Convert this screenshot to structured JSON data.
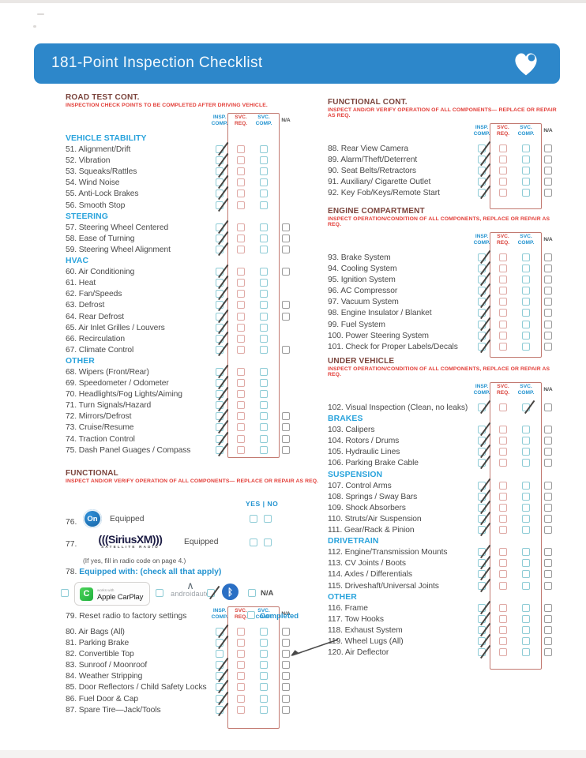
{
  "banner": {
    "title": "181-Point Inspection Checklist"
  },
  "columns": {
    "headers": [
      [
        "INSP.",
        "COMP."
      ],
      [
        "SVC.",
        "REQ."
      ],
      [
        "SVC.",
        "COMP."
      ],
      [
        "N/A"
      ]
    ]
  },
  "sections": {
    "road_test": {
      "title": "ROAD TEST CONT.",
      "subtitle": "INSPECTION CHECK POINTS TO BE COMPLETED AFTER DRIVING VEHICLE.",
      "rows": [
        {
          "t": "g",
          "l": "VEHICLE STABILITY"
        },
        {
          "t": "i",
          "l": "51. Alignment/Drift",
          "b": [
            1,
            0,
            0
          ],
          "na": "none"
        },
        {
          "t": "i",
          "l": "52. Vibration",
          "b": [
            1,
            0,
            0
          ],
          "na": "none"
        },
        {
          "t": "i",
          "l": "53. Squeaks/Rattles",
          "b": [
            1,
            0,
            0
          ],
          "na": "none"
        },
        {
          "t": "i",
          "l": "54. Wind Noise",
          "b": [
            1,
            0,
            0
          ],
          "na": "none"
        },
        {
          "t": "i",
          "l": "55. Anti-Lock Brakes",
          "b": [
            1,
            0,
            0
          ],
          "na": "none"
        },
        {
          "t": "i",
          "l": "56. Smooth Stop",
          "b": [
            1,
            0,
            0
          ],
          "na": "none"
        },
        {
          "t": "g",
          "l": "STEERING"
        },
        {
          "t": "i",
          "l": "57. Steering Wheel Centered",
          "b": [
            1,
            0,
            0
          ],
          "na": "box"
        },
        {
          "t": "i",
          "l": "58. Ease of Turning",
          "b": [
            1,
            0,
            0
          ],
          "na": "box"
        },
        {
          "t": "i",
          "l": "59. Steering Wheel Alignment",
          "b": [
            1,
            0,
            0
          ],
          "na": "box"
        },
        {
          "t": "g",
          "l": "HVAC"
        },
        {
          "t": "i",
          "l": "60. Air Conditioning",
          "b": [
            1,
            0,
            0
          ],
          "na": "box"
        },
        {
          "t": "i",
          "l": "61. Heat",
          "b": [
            1,
            0,
            0
          ],
          "na": "none"
        },
        {
          "t": "i",
          "l": "62. Fan/Speeds",
          "b": [
            1,
            0,
            0
          ],
          "na": "none"
        },
        {
          "t": "i",
          "l": "63. Defrost",
          "b": [
            1,
            0,
            0
          ],
          "na": "box"
        },
        {
          "t": "i",
          "l": "64. Rear Defrost",
          "b": [
            1,
            0,
            0
          ],
          "na": "box"
        },
        {
          "t": "i",
          "l": "65. Air Inlet Grilles / Louvers",
          "b": [
            1,
            0,
            0
          ],
          "na": "none"
        },
        {
          "t": "i",
          "l": "66. Recirculation",
          "b": [
            1,
            0,
            0
          ],
          "na": "none"
        },
        {
          "t": "i",
          "l": "67. Climate Control",
          "b": [
            1,
            0,
            0
          ],
          "na": "box"
        },
        {
          "t": "g",
          "l": "OTHER"
        },
        {
          "t": "i",
          "l": "68. Wipers (Front/Rear)",
          "b": [
            1,
            0,
            0
          ],
          "na": "none"
        },
        {
          "t": "i",
          "l": "69. Speedometer / Odometer",
          "b": [
            1,
            0,
            0
          ],
          "na": "none"
        },
        {
          "t": "i",
          "l": "70. Headlights/Fog Lights/Aiming",
          "b": [
            1,
            0,
            0
          ],
          "na": "none"
        },
        {
          "t": "i",
          "l": "71. Turn Signals/Hazard",
          "b": [
            1,
            0,
            0
          ],
          "na": "none"
        },
        {
          "t": "i",
          "l": "72. Mirrors/Defrost",
          "b": [
            1,
            0,
            0
          ],
          "na": "box"
        },
        {
          "t": "i",
          "l": "73. Cruise/Resume",
          "b": [
            1,
            0,
            0
          ],
          "na": "box"
        },
        {
          "t": "i",
          "l": "74. Traction Control",
          "b": [
            1,
            0,
            0
          ],
          "na": "box"
        },
        {
          "t": "i",
          "l": "75. Dash Panel Guages / Compass",
          "b": [
            1,
            0,
            0
          ],
          "na": "box"
        }
      ]
    },
    "bottom_left": {
      "rows": [
        {
          "t": "i",
          "l": "80. Air Bags (All)",
          "b": [
            1,
            0,
            0
          ],
          "na": "box"
        },
        {
          "t": "i",
          "l": "81. Parking Brake",
          "b": [
            1,
            0,
            0
          ],
          "na": "box"
        },
        {
          "t": "i",
          "l": "82. Convertible Top",
          "b": [
            0,
            0,
            0
          ],
          "na": "box"
        },
        {
          "t": "i",
          "l": "83. Sunroof / Moonroof",
          "b": [
            1,
            0,
            0
          ],
          "na": "box"
        },
        {
          "t": "i",
          "l": "84. Weather Stripping",
          "b": [
            1,
            0,
            0
          ],
          "na": "box"
        },
        {
          "t": "i",
          "l": "85. Door Reflectors / Child Safety Locks",
          "b": [
            1,
            0,
            0
          ],
          "na": "box"
        },
        {
          "t": "i",
          "l": "86. Fuel Door & Cap",
          "b": [
            1,
            0,
            0
          ],
          "na": "box"
        },
        {
          "t": "i",
          "l": "87. Spare Tire—Jack/Tools",
          "b": [
            1,
            0,
            0
          ],
          "na": "box"
        }
      ]
    },
    "functional_cont": {
      "title": "FUNCTIONAL CONT.",
      "subtitle": "INSPECT AND/OR VERIFY OPERATION OF ALL COMPONENTS— REPLACE OR REPAIR AS REQ.",
      "rows": [
        {
          "t": "i",
          "l": "88. Rear View Camera",
          "b": [
            1,
            0,
            0
          ],
          "na": "box"
        },
        {
          "t": "i",
          "l": "89. Alarm/Theft/Deterrent",
          "b": [
            1,
            0,
            0
          ],
          "na": "box"
        },
        {
          "t": "i",
          "l": "90. Seat Belts/Retractors",
          "b": [
            1,
            0,
            0
          ],
          "na": "box"
        },
        {
          "t": "i",
          "l": "91. Auxiliary/ Cigarette Outlet",
          "b": [
            1,
            0,
            0
          ],
          "na": "box"
        },
        {
          "t": "i",
          "l": "92. Key Fob/Keys/Remote Start",
          "b": [
            1,
            0,
            0
          ],
          "na": "box"
        }
      ]
    },
    "engine": {
      "title": "ENGINE COMPARTMENT",
      "subtitle": "INSPECT OPERATION/CONDITION OF ALL COMPONENTS, REPLACE OR REPAIR AS REQ.",
      "rows": [
        {
          "t": "i",
          "l": "93. Brake System",
          "b": [
            1,
            0,
            0
          ],
          "na": "box"
        },
        {
          "t": "i",
          "l": "94. Cooling System",
          "b": [
            1,
            0,
            0
          ],
          "na": "box"
        },
        {
          "t": "i",
          "l": "95. Ignition System",
          "b": [
            1,
            0,
            0
          ],
          "na": "box"
        },
        {
          "t": "i",
          "l": "96. AC Compressor",
          "b": [
            1,
            0,
            0
          ],
          "na": "box"
        },
        {
          "t": "i",
          "l": "97. Vacuum System",
          "b": [
            1,
            0,
            0
          ],
          "na": "box"
        },
        {
          "t": "i",
          "l": "98. Engine Insulator / Blanket",
          "b": [
            1,
            0,
            0
          ],
          "na": "box"
        },
        {
          "t": "i",
          "l": "99. Fuel System",
          "b": [
            1,
            0,
            0
          ],
          "na": "box"
        },
        {
          "t": "i",
          "l": "100. Power Steering System",
          "b": [
            1,
            0,
            0
          ],
          "na": "box"
        },
        {
          "t": "i",
          "l": "101. Check for Proper Labels/Decals",
          "b": [
            1,
            0,
            0
          ],
          "na": "box"
        }
      ]
    },
    "under_vehicle": {
      "title": "UNDER VEHICLE",
      "subtitle": "INSPECT OPERATION/CONDITION OF ALL COMPONENTS, REPLACE OR REPAIR AS REQ.",
      "rows": [
        {
          "t": "i",
          "l": "102. Visual Inspection (Clean, no leaks)",
          "b": [
            1,
            0,
            1
          ],
          "na": "box"
        },
        {
          "t": "g",
          "l": "BRAKES"
        },
        {
          "t": "i",
          "l": "103. Calipers",
          "b": [
            1,
            0,
            0
          ],
          "na": "box"
        },
        {
          "t": "i",
          "l": "104. Rotors / Drums",
          "b": [
            1,
            0,
            0
          ],
          "na": "box"
        },
        {
          "t": "i",
          "l": "105. Hydraulic Lines",
          "b": [
            1,
            0,
            0
          ],
          "na": "box"
        },
        {
          "t": "i",
          "l": "106. Parking Brake Cable",
          "b": [
            1,
            0,
            0
          ],
          "na": "box"
        },
        {
          "t": "g",
          "l": "SUSPENSION"
        },
        {
          "t": "i",
          "l": "107. Control Arms",
          "b": [
            1,
            0,
            0
          ],
          "na": "box"
        },
        {
          "t": "i",
          "l": "108. Springs / Sway Bars",
          "b": [
            1,
            0,
            0
          ],
          "na": "box"
        },
        {
          "t": "i",
          "l": "109. Shock Absorbers",
          "b": [
            1,
            0,
            0
          ],
          "na": "box"
        },
        {
          "t": "i",
          "l": "110. Struts/Air Suspension",
          "b": [
            1,
            0,
            0
          ],
          "na": "box"
        },
        {
          "t": "i",
          "l": "111. Gear/Rack & Pinion",
          "b": [
            1,
            0,
            0
          ],
          "na": "box"
        },
        {
          "t": "g",
          "l": "DRIVETRAIN"
        },
        {
          "t": "i",
          "l": "112. Engine/Transmission Mounts",
          "b": [
            1,
            0,
            0
          ],
          "na": "box"
        },
        {
          "t": "i",
          "l": "113. CV Joints / Boots",
          "b": [
            1,
            0,
            0
          ],
          "na": "box"
        },
        {
          "t": "i",
          "l": "114. Axles / Differentials",
          "b": [
            1,
            0,
            0
          ],
          "na": "box"
        },
        {
          "t": "i",
          "l": "115. Driveshaft/Universal Joints",
          "b": [
            1,
            0,
            0
          ],
          "na": "box"
        },
        {
          "t": "g",
          "l": "OTHER"
        },
        {
          "t": "i",
          "l": "116. Frame",
          "b": [
            1,
            0,
            0
          ],
          "na": "box"
        },
        {
          "t": "i",
          "l": "117. Tow Hooks",
          "b": [
            1,
            0,
            0
          ],
          "na": "box"
        },
        {
          "t": "i",
          "l": "118. Exhaust System",
          "b": [
            1,
            0,
            0
          ],
          "na": "box"
        },
        {
          "t": "i",
          "l": "119. Wheel Lugs (All)",
          "b": [
            1,
            0,
            0
          ],
          "na": "box"
        },
        {
          "t": "i",
          "l": "120. Air Deflector",
          "b": [
            1,
            0,
            0
          ],
          "na": "box"
        }
      ]
    }
  },
  "functional": {
    "title": "FUNCTIONAL",
    "subtitle": "INSPECT AND/OR VERIFY OPERATION OF ALL COMPONENTS— REPLACE OR REPAIR AS REQ.",
    "yes_no": "YES | NO",
    "item76": {
      "num": "76.",
      "logo_text": "On",
      "label": "Equipped"
    },
    "item77": {
      "num": "77.",
      "logo_main": "(((SiriusXM)))",
      "logo_sub": "SATELLITE RADIO",
      "label": "Equipped",
      "note": "(If yes, fill in radio code on page 4.)"
    },
    "item78": {
      "num": "78.",
      "label": "Equipped with: (check all that apply)",
      "carplay_small": "works with",
      "carplay": "Apple CarPlay",
      "carplay_icon": "C",
      "android": "androidauto",
      "android_caret": "∧",
      "bluetooth_glyph": "ᛒ",
      "na_label": "N/A"
    },
    "item79": {
      "num": "79.",
      "label": "Reset radio to factory settings",
      "status": "Completed"
    }
  },
  "colors": {
    "banner_blue": "#2d87ca",
    "section_title": "#7b443c",
    "subtitle_red": "#e23d37",
    "group_cyan": "#29a3dc",
    "header_blue": "#2594d0",
    "header_red": "#d9453e",
    "box_teal": "#8fccd6",
    "box_pink": "#dfa9a5",
    "box_gray": "#9b9b9b",
    "enclosure_red": "#c27970"
  }
}
